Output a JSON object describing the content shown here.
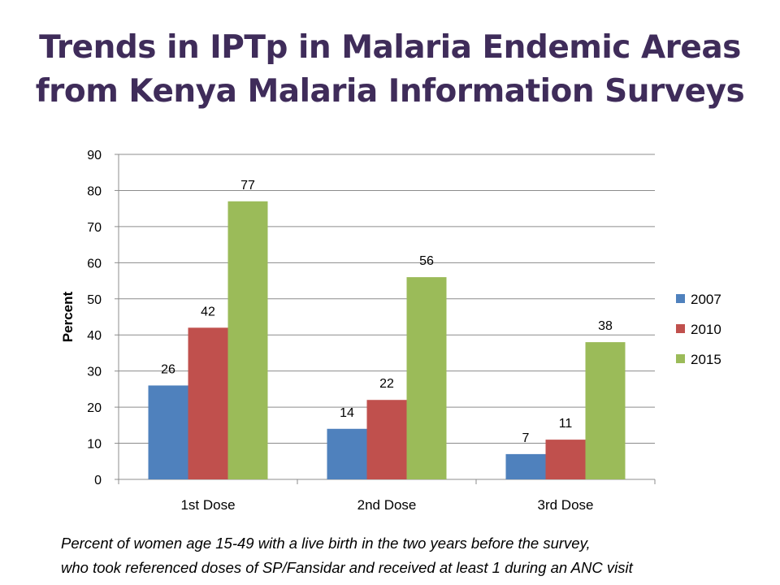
{
  "title_lines": [
    "Trends in IPTp in Malaria Endemic Areas",
    "from Kenya Malaria Information Surveys"
  ],
  "footnote_lines": [
    "Percent of women age 15-49 with a live birth in the two years before the survey,",
    "who took referenced doses of SP/Fansidar and received at least 1 during an ANC visit"
  ],
  "chart_data": {
    "type": "bar",
    "title": "",
    "xlabel": "",
    "ylabel": "Percent",
    "ylim": [
      0,
      90
    ],
    "yticks": [
      0,
      10,
      20,
      30,
      40,
      50,
      60,
      70,
      80,
      90
    ],
    "grid": true,
    "legend_position": "right",
    "categories": [
      "1st Dose",
      "2nd Dose",
      "3rd Dose"
    ],
    "series": [
      {
        "name": "2007",
        "color": "#4f81bd",
        "values": [
          26,
          14,
          7
        ]
      },
      {
        "name": "2010",
        "color": "#c0504d",
        "values": [
          42,
          22,
          11
        ]
      },
      {
        "name": "2015",
        "color": "#9bbb59",
        "values": [
          77,
          56,
          38
        ]
      }
    ]
  }
}
